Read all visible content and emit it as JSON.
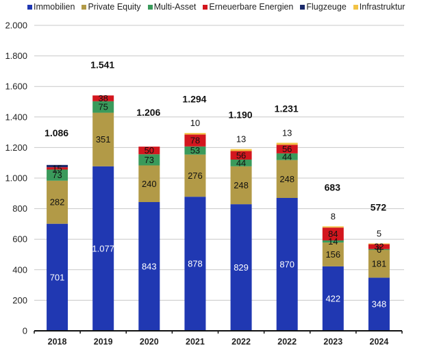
{
  "chart_data": {
    "type": "bar",
    "stacked": true,
    "title": "",
    "xlabel": "",
    "ylabel": "",
    "ylim": [
      0,
      2000
    ],
    "yticks": [
      0,
      200,
      400,
      600,
      800,
      1000,
      1200,
      1400,
      1600,
      1800,
      2000
    ],
    "ytick_labels": [
      "0",
      "200",
      "400",
      "600",
      "800",
      "1.000",
      "1.200",
      "1.400",
      "1.600",
      "1.800",
      "2.000"
    ],
    "grid": true,
    "legend_position": "top",
    "categories": [
      "2018",
      "2019",
      "2020",
      "2021",
      "2022",
      "2022",
      "2023",
      "2024"
    ],
    "series": [
      {
        "name": "Immobilien",
        "color": "#2038B2",
        "label_color": "#ffffff",
        "values": [
          701,
          1077,
          843,
          878,
          829,
          870,
          422,
          348
        ],
        "labels": [
          "701",
          "1.077",
          "843",
          "878",
          "829",
          "870",
          "422",
          "348"
        ]
      },
      {
        "name": "Private Equity",
        "color": "#B29A47",
        "label_color": "#111111",
        "values": [
          282,
          351,
          240,
          276,
          248,
          248,
          156,
          181
        ],
        "labels": [
          "282",
          "351",
          "240",
          "276",
          "248",
          "248",
          "156",
          "181"
        ]
      },
      {
        "name": "Multi-Asset",
        "color": "#3A9A5B",
        "label_color": "#111111",
        "values": [
          73,
          75,
          73,
          53,
          44,
          44,
          14,
          6
        ],
        "labels": [
          "73",
          "75",
          "73",
          "53",
          "44",
          "44",
          "14",
          "6"
        ]
      },
      {
        "name": "Erneuerbare Energien",
        "color": "#D3161E",
        "label_color": "#111111",
        "values": [
          15,
          38,
          50,
          78,
          56,
          56,
          84,
          32
        ],
        "labels": [
          "15",
          "38",
          "50",
          "78",
          "56",
          "56",
          "84",
          "32"
        ]
      },
      {
        "name": "Flugzeuge",
        "color": "#1B2A6B",
        "label_color": "#111111",
        "values": [
          15,
          0,
          0,
          0,
          0,
          0,
          0,
          0
        ],
        "labels": [
          "",
          "",
          "",
          "",
          "",
          "",
          "",
          ""
        ]
      },
      {
        "name": "Infrastruktur",
        "color": "#F2C345",
        "label_color": "#111111",
        "values": [
          0,
          0,
          0,
          10,
          13,
          13,
          8,
          5
        ],
        "labels": [
          "",
          "",
          "",
          "10",
          "13",
          "13",
          "8",
          "5"
        ]
      }
    ],
    "totals": [
      1086,
      1541,
      1206,
      1294,
      1190,
      1231,
      683,
      572
    ],
    "total_labels": [
      "1.086",
      "1.541",
      "1.206",
      "1.294",
      "1.190",
      "1.231",
      "683",
      "572"
    ]
  }
}
